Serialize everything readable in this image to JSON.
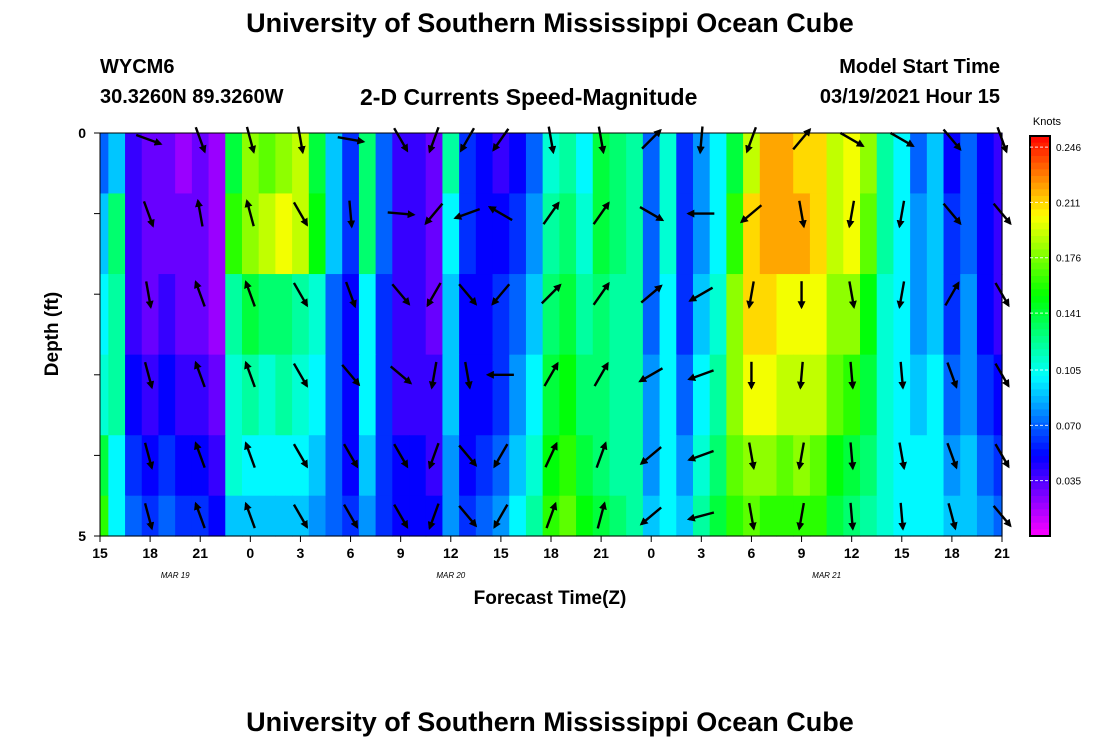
{
  "page": {
    "title_top": "University of Southern Mississippi Ocean Cube",
    "title_bottom": "University of Southern Mississippi Ocean Cube",
    "station_id": "WYCM6",
    "station_coords": "30.3260N 89.3260W",
    "subtitle": "2-D Currents Speed-Magnitude",
    "model_start_label": "Model Start Time",
    "model_start_value": "03/19/2021 Hour 15"
  },
  "chart_data": {
    "type": "heatmap",
    "title": "2-D Currents Speed-Magnitude",
    "xlabel": "Forecast Time(Z)",
    "ylabel": "Depth (ft)",
    "x_tick_labels": [
      "15",
      "18",
      "21",
      "0",
      "3",
      "6",
      "9",
      "12",
      "15",
      "18",
      "21",
      "0",
      "3",
      "6",
      "9",
      "12",
      "15",
      "18",
      "21"
    ],
    "x_tick_hours": [
      0,
      3,
      6,
      9,
      12,
      15,
      18,
      21,
      24,
      27,
      30,
      33,
      36,
      39,
      42,
      45,
      48,
      51,
      54
    ],
    "date_labels": [
      {
        "text": "MAR 19",
        "hour": 4.5
      },
      {
        "text": "MAR 20",
        "hour": 21
      },
      {
        "text": "MAR 21",
        "hour": 43.5
      }
    ],
    "xlim": [
      0,
      54
    ],
    "y_tick_labels": [
      "0",
      "5"
    ],
    "ylim": [
      0,
      5
    ],
    "colorbar": {
      "unit": "Knots",
      "ticks": [
        "0.246",
        "0.211",
        "0.176",
        "0.141",
        "0.105",
        "0.070",
        "0.035"
      ],
      "tick_values": [
        0.246,
        0.211,
        0.176,
        0.141,
        0.105,
        0.07,
        0.035
      ],
      "range": [
        0,
        0.253
      ]
    },
    "depth_layers": [
      0.25,
      1.25,
      2.25,
      3.25,
      4.25,
      4.75
    ],
    "time_hours": [
      0,
      1,
      2,
      3,
      4,
      5,
      6,
      7,
      8,
      9,
      10,
      11,
      12,
      13,
      14,
      15,
      16,
      17,
      18,
      19,
      20,
      21,
      22,
      23,
      24,
      25,
      26,
      27,
      28,
      29,
      30,
      31,
      32,
      33,
      34,
      35,
      36,
      37,
      38,
      39,
      40,
      41,
      42,
      43,
      44,
      45,
      46,
      47,
      48,
      49,
      50,
      51,
      52,
      53,
      54
    ],
    "speed_knots": [
      [
        0.07,
        0.09,
        0.04,
        0.03,
        0.03,
        0.02,
        0.03,
        0.02,
        0.14,
        0.18,
        0.17,
        0.18,
        0.19,
        0.14,
        0.09,
        0.06,
        0.13,
        0.07,
        0.04,
        0.04,
        0.03,
        0.12,
        0.06,
        0.05,
        0.04,
        0.05,
        0.07,
        0.11,
        0.12,
        0.1,
        0.14,
        0.13,
        0.12,
        0.07,
        0.11,
        0.06,
        0.08,
        0.1,
        0.14,
        0.19,
        0.22,
        0.22,
        0.21,
        0.21,
        0.19,
        0.2,
        0.18,
        0.12,
        0.1,
        0.07,
        0.09,
        0.05,
        0.07,
        0.05,
        0.04
      ],
      [
        0.09,
        0.13,
        0.04,
        0.03,
        0.03,
        0.03,
        0.03,
        0.02,
        0.16,
        0.18,
        0.19,
        0.2,
        0.19,
        0.15,
        0.09,
        0.06,
        0.13,
        0.07,
        0.04,
        0.04,
        0.03,
        0.1,
        0.06,
        0.05,
        0.05,
        0.06,
        0.08,
        0.12,
        0.13,
        0.11,
        0.14,
        0.13,
        0.12,
        0.07,
        0.11,
        0.06,
        0.08,
        0.1,
        0.16,
        0.21,
        0.22,
        0.22,
        0.22,
        0.21,
        0.19,
        0.2,
        0.17,
        0.12,
        0.1,
        0.08,
        0.09,
        0.06,
        0.07,
        0.05,
        0.04
      ],
      [
        0.1,
        0.12,
        0.04,
        0.03,
        0.04,
        0.03,
        0.03,
        0.02,
        0.12,
        0.14,
        0.13,
        0.13,
        0.12,
        0.11,
        0.07,
        0.05,
        0.1,
        0.06,
        0.04,
        0.04,
        0.03,
        0.09,
        0.05,
        0.05,
        0.06,
        0.07,
        0.09,
        0.13,
        0.14,
        0.12,
        0.13,
        0.12,
        0.12,
        0.07,
        0.1,
        0.06,
        0.09,
        0.11,
        0.18,
        0.21,
        0.21,
        0.2,
        0.2,
        0.2,
        0.18,
        0.18,
        0.15,
        0.11,
        0.1,
        0.08,
        0.09,
        0.06,
        0.08,
        0.05,
        0.04
      ],
      [
        0.11,
        0.12,
        0.05,
        0.04,
        0.05,
        0.04,
        0.04,
        0.03,
        0.11,
        0.12,
        0.11,
        0.12,
        0.11,
        0.1,
        0.07,
        0.05,
        0.1,
        0.06,
        0.04,
        0.04,
        0.04,
        0.09,
        0.05,
        0.05,
        0.06,
        0.08,
        0.1,
        0.14,
        0.15,
        0.13,
        0.13,
        0.12,
        0.12,
        0.08,
        0.1,
        0.07,
        0.1,
        0.12,
        0.18,
        0.2,
        0.2,
        0.19,
        0.19,
        0.19,
        0.17,
        0.16,
        0.14,
        0.11,
        0.1,
        0.09,
        0.1,
        0.07,
        0.08,
        0.06,
        0.05
      ],
      [
        0.14,
        0.1,
        0.06,
        0.05,
        0.06,
        0.05,
        0.05,
        0.04,
        0.11,
        0.1,
        0.1,
        0.1,
        0.1,
        0.09,
        0.07,
        0.05,
        0.09,
        0.06,
        0.05,
        0.05,
        0.04,
        0.08,
        0.05,
        0.06,
        0.07,
        0.09,
        0.11,
        0.15,
        0.16,
        0.14,
        0.13,
        0.12,
        0.12,
        0.08,
        0.1,
        0.08,
        0.11,
        0.13,
        0.17,
        0.18,
        0.18,
        0.17,
        0.18,
        0.17,
        0.15,
        0.14,
        0.13,
        0.11,
        0.1,
        0.1,
        0.1,
        0.08,
        0.09,
        0.07,
        0.06
      ],
      [
        0.16,
        0.1,
        0.07,
        0.06,
        0.07,
        0.06,
        0.06,
        0.05,
        0.09,
        0.09,
        0.09,
        0.09,
        0.09,
        0.08,
        0.07,
        0.06,
        0.08,
        0.06,
        0.05,
        0.05,
        0.05,
        0.08,
        0.06,
        0.07,
        0.08,
        0.1,
        0.12,
        0.16,
        0.17,
        0.15,
        0.14,
        0.13,
        0.12,
        0.09,
        0.1,
        0.09,
        0.12,
        0.14,
        0.16,
        0.17,
        0.16,
        0.16,
        0.16,
        0.16,
        0.14,
        0.13,
        0.12,
        0.11,
        0.1,
        0.1,
        0.1,
        0.09,
        0.09,
        0.08,
        0.07
      ]
    ],
    "vectors": {
      "time_hours": [
        2.9,
        6,
        9,
        12,
        15,
        18,
        20,
        22,
        24,
        27,
        30,
        33,
        36,
        39,
        42,
        45,
        48,
        51,
        54
      ],
      "depths": [
        0.08,
        1.0,
        2.0,
        3.0,
        4.0,
        4.75
      ],
      "direction_deg": [
        [
          110,
          160,
          165,
          170,
          100,
          150,
          200,
          210,
          215,
          170,
          170,
          45,
          185,
          200,
          40,
          120,
          120,
          140,
          160
        ],
        [
          160,
          350,
          345,
          150,
          175,
          95,
          220,
          250,
          300,
          35,
          35,
          120,
          270,
          230,
          170,
          190,
          190,
          140,
          140
        ],
        [
          170,
          340,
          340,
          150,
          160,
          140,
          210,
          140,
          220,
          45,
          35,
          50,
          240,
          190,
          180,
          170,
          190,
          30,
          150
        ],
        [
          165,
          340,
          340,
          150,
          140,
          130,
          190,
          170,
          270,
          30,
          30,
          240,
          250,
          180,
          185,
          175,
          175,
          160,
          150
        ],
        [
          165,
          340,
          340,
          150,
          150,
          150,
          200,
          140,
          210,
          25,
          20,
          230,
          250,
          170,
          190,
          175,
          170,
          160,
          150
        ],
        [
          165,
          340,
          340,
          150,
          150,
          150,
          200,
          140,
          210,
          20,
          15,
          230,
          255,
          170,
          190,
          175,
          175,
          165,
          140
        ]
      ]
    }
  }
}
